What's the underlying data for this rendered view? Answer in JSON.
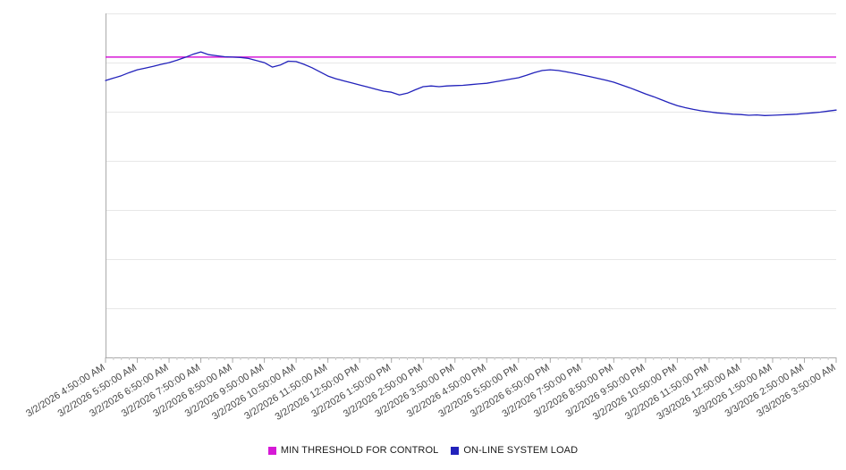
{
  "chart_data": {
    "type": "line",
    "title": "",
    "xlabel": "",
    "ylabel": "",
    "ylim": [
      0,
      100
    ],
    "grid_divisions": 7,
    "legend_position": "bottom",
    "colors": {
      "grid": "#e7e7e7",
      "axis": "#aaaaaa",
      "minor_tick": "#c9c9c9",
      "tick_label": "#454545",
      "threshold": "#d619d6",
      "load": "#2222bb"
    },
    "x_tick_labels": [
      "3/2/2026 4:50:00 AM",
      "3/2/2026 5:50:00 AM",
      "3/2/2026 6:50:00 AM",
      "3/2/2026 7:50:00 AM",
      "3/2/2026 8:50:00 AM",
      "3/2/2026 9:50:00 AM",
      "3/2/2026 10:50:00 AM",
      "3/2/2026 11:50:00 AM",
      "3/2/2026 12:50:00 PM",
      "3/2/2026 1:50:00 PM",
      "3/2/2026 2:50:00 PM",
      "3/2/2026 3:50:00 PM",
      "3/2/2026 4:50:00 PM",
      "3/2/2026 5:50:00 PM",
      "3/2/2026 6:50:00 PM",
      "3/2/2026 7:50:00 PM",
      "3/2/2026 8:50:00 PM",
      "3/2/2026 9:50:00 PM",
      "3/2/2026 10:50:00 PM",
      "3/2/2026 11:50:00 PM",
      "3/3/2026 12:50:00 AM",
      "3/3/2026 1:50:00 AM",
      "3/3/2026 2:50:00 AM",
      "3/3/2026 3:50:00 AM"
    ],
    "series": [
      {
        "name": "MIN THRESHOLD FOR CONTROL",
        "type": "threshold",
        "value": 87.3,
        "color": "#d619d6"
      },
      {
        "name": "ON-LINE SYSTEM LOAD",
        "type": "line",
        "color": "#2222bb",
        "values": [
          80.5,
          81.2,
          81.9,
          82.8,
          83.6,
          84.1,
          84.6,
          85.2,
          85.7,
          86.4,
          87.2,
          88.1,
          88.8,
          88.0,
          87.7,
          87.4,
          87.3,
          87.2,
          86.9,
          86.3,
          85.7,
          84.4,
          85.0,
          86.1,
          86.0,
          85.2,
          84.2,
          83.0,
          81.8,
          81.0,
          80.4,
          79.8,
          79.2,
          78.6,
          78.0,
          77.4,
          77.1,
          76.3,
          76.8,
          77.8,
          78.7,
          78.9,
          78.7,
          78.9,
          79.0,
          79.1,
          79.3,
          79.5,
          79.7,
          80.1,
          80.5,
          80.9,
          81.3,
          82.0,
          82.8,
          83.4,
          83.6,
          83.4,
          83.0,
          82.6,
          82.1,
          81.6,
          81.1,
          80.6,
          80.0,
          79.2,
          78.4,
          77.5,
          76.6,
          75.8,
          74.9,
          74.0,
          73.2,
          72.6,
          72.1,
          71.7,
          71.4,
          71.1,
          70.9,
          70.7,
          70.6,
          70.4,
          70.5,
          70.3,
          70.4,
          70.5,
          70.6,
          70.7,
          70.9,
          71.1,
          71.3,
          71.6,
          71.9
        ]
      }
    ]
  },
  "legend": {
    "items": [
      {
        "label": "MIN THRESHOLD FOR CONTROL"
      },
      {
        "label": "ON-LINE SYSTEM LOAD"
      }
    ]
  }
}
